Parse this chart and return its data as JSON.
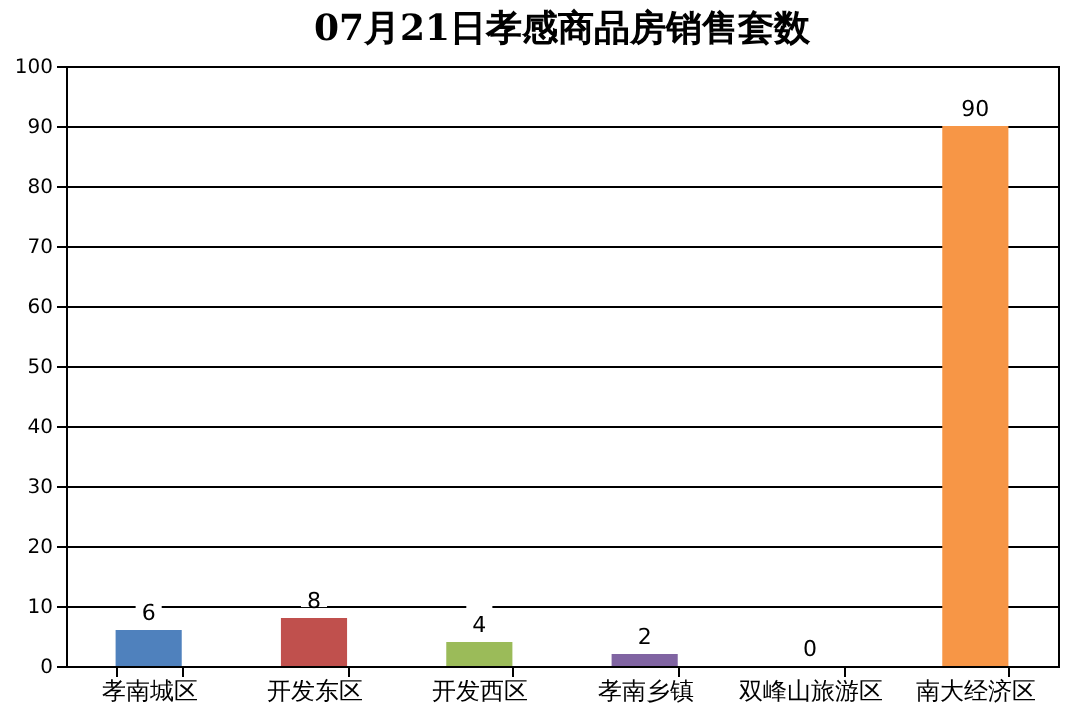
{
  "chart_data": {
    "type": "bar",
    "title": "07月21日孝感商品房销售套数",
    "categories": [
      "孝南城区",
      "开发东区",
      "开发西区",
      "孝南乡镇",
      "双峰山旅游区",
      "南大经济区"
    ],
    "values": [
      6,
      8,
      4,
      2,
      0,
      90
    ],
    "colors": [
      "#4f81bd",
      "#c0504d",
      "#9bbb59",
      "#8064a2",
      "#4bacc6",
      "#f79646"
    ],
    "ylim": [
      0,
      100
    ],
    "yticks": [
      0,
      10,
      20,
      30,
      40,
      50,
      60,
      70,
      80,
      90,
      100
    ],
    "grid": "y",
    "data_labels": true
  }
}
